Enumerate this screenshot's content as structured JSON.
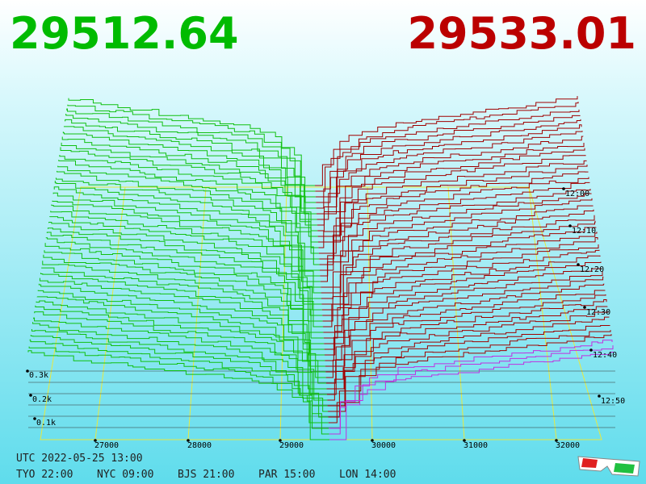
{
  "bid_price": "29512.64",
  "ask_price": "29533.01",
  "price_axis": [
    "27000",
    "28000",
    "29000",
    "30000",
    "31000",
    "32000"
  ],
  "time_axis": [
    "12:00",
    "12:10",
    "12:20",
    "12:30",
    "12:40",
    "12:50"
  ],
  "volume_axis": [
    "0.3k",
    "0.2k",
    "0.1k"
  ],
  "clock": {
    "utc": "UTC 2022-05-25 13:00",
    "zones": [
      "TYO 22:00",
      "NYC 09:00",
      "BJS 21:00",
      "PAR 15:00",
      "LON 14:00"
    ]
  }
}
